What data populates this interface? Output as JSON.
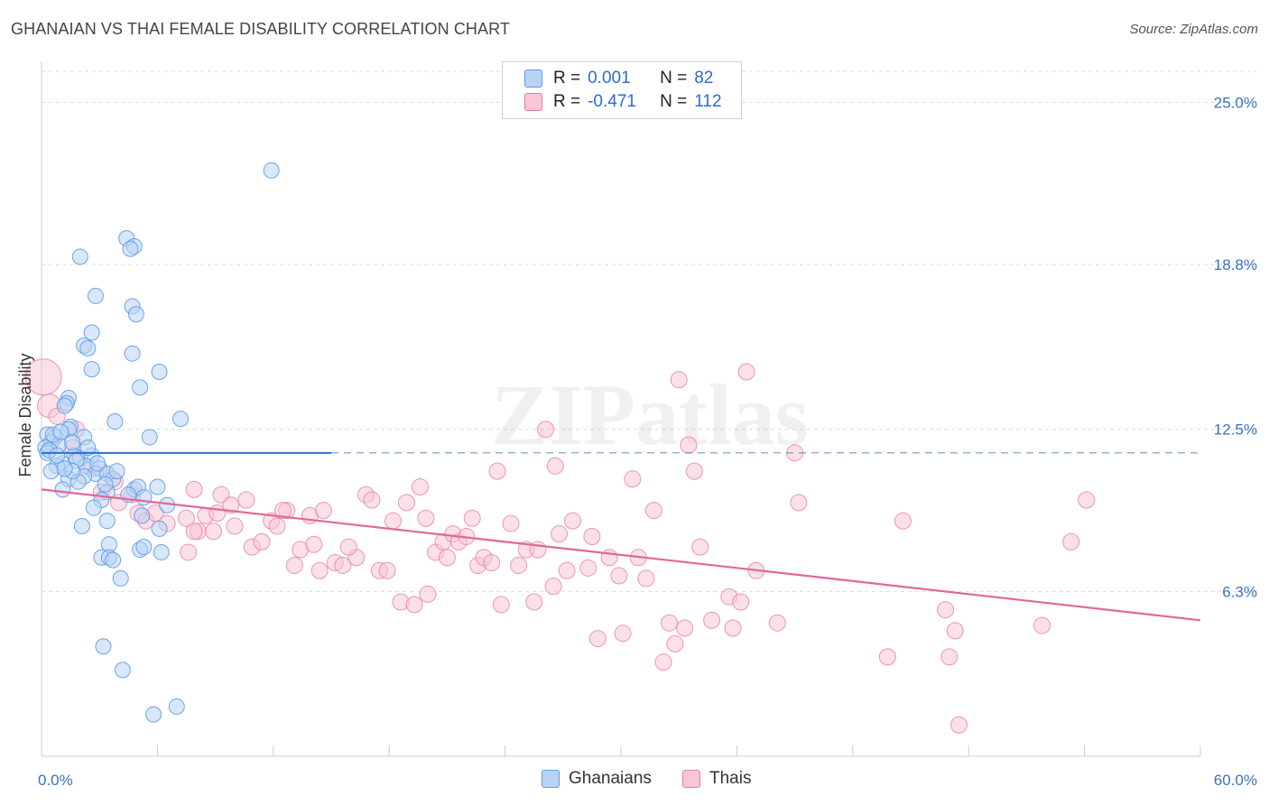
{
  "title": "GHANAIAN VS THAI FEMALE DISABILITY CORRELATION CHART",
  "source": "Source: ZipAtlas.com",
  "watermark": "ZIPatlas",
  "colors": {
    "blue": "#5b9be6",
    "blue_fill": "#b9d3f5",
    "blue_line": "#2a6fd4",
    "pink": "#e87da3",
    "pink_fill": "#f8c6d6",
    "pink_line": "#e0679a",
    "tick": "#3a72c4",
    "grid": "#dcdcdc"
  },
  "legend": {
    "rows": [
      {
        "series": "Ghanaians",
        "r_label": "R =",
        "r_value": "0.001",
        "n_label": "N =",
        "n_value": "82"
      },
      {
        "series": "Thais",
        "r_label": "R =",
        "r_value": "-0.471",
        "n_label": "N =",
        "n_value": "112"
      }
    ]
  },
  "bottom_legend": [
    "Ghanaians",
    "Thais"
  ],
  "chart_data": {
    "type": "scatter",
    "title": "GHANAIAN VS THAI FEMALE DISABILITY CORRELATION CHART",
    "xlabel": "",
    "ylabel": "Female Disability",
    "xlim": [
      0,
      60
    ],
    "ylim": [
      0,
      26.5
    ],
    "x_tick_labels": [
      "0.0%",
      "60.0%"
    ],
    "y_ticks": [
      6.3,
      12.5,
      18.8,
      25.0
    ],
    "y_tick_labels": [
      "6.3%",
      "12.5%",
      "18.8%",
      "25.0%"
    ],
    "grid": true,
    "legend_position": "top-center",
    "series": [
      {
        "name": "Ghanaians",
        "color": "#5b9be6",
        "trend": {
          "x": [
            0,
            15
          ],
          "y": [
            11.6,
            11.6
          ],
          "dashed_to": 60
        },
        "points": [
          [
            11.9,
            22.4
          ],
          [
            4.4,
            19.8
          ],
          [
            4.8,
            19.5
          ],
          [
            2.0,
            19.1
          ],
          [
            4.6,
            19.4
          ],
          [
            2.8,
            17.6
          ],
          [
            4.7,
            17.2
          ],
          [
            4.9,
            16.9
          ],
          [
            2.6,
            16.2
          ],
          [
            2.2,
            15.7
          ],
          [
            2.4,
            15.6
          ],
          [
            4.7,
            15.4
          ],
          [
            2.6,
            14.8
          ],
          [
            6.1,
            14.7
          ],
          [
            5.1,
            14.1
          ],
          [
            1.4,
            13.7
          ],
          [
            1.3,
            13.5
          ],
          [
            1.2,
            13.4
          ],
          [
            7.2,
            12.9
          ],
          [
            3.8,
            12.8
          ],
          [
            1.5,
            12.6
          ],
          [
            1.4,
            12.5
          ],
          [
            0.3,
            12.3
          ],
          [
            0.7,
            12.2
          ],
          [
            2.2,
            12.2
          ],
          [
            5.6,
            12.2
          ],
          [
            0.5,
            12.0
          ],
          [
            0.2,
            11.8
          ],
          [
            0.9,
            11.9
          ],
          [
            0.3,
            11.6
          ],
          [
            1.7,
            11.5
          ],
          [
            2.0,
            11.4
          ],
          [
            2.6,
            11.5
          ],
          [
            1.1,
            11.2
          ],
          [
            0.8,
            11.1
          ],
          [
            2.3,
            11.1
          ],
          [
            3.0,
            11.0
          ],
          [
            0.5,
            10.9
          ],
          [
            2.8,
            10.8
          ],
          [
            3.4,
            10.8
          ],
          [
            2.2,
            10.7
          ],
          [
            1.4,
            10.6
          ],
          [
            3.7,
            10.6
          ],
          [
            1.9,
            10.5
          ],
          [
            1.1,
            10.2
          ],
          [
            3.4,
            10.1
          ],
          [
            4.8,
            10.2
          ],
          [
            5.0,
            10.3
          ],
          [
            6.0,
            10.3
          ],
          [
            3.1,
            9.8
          ],
          [
            2.7,
            9.5
          ],
          [
            5.3,
            9.9
          ],
          [
            5.2,
            9.2
          ],
          [
            3.4,
            9.0
          ],
          [
            2.1,
            8.8
          ],
          [
            6.1,
            8.7
          ],
          [
            3.5,
            8.1
          ],
          [
            5.1,
            7.9
          ],
          [
            3.1,
            7.6
          ],
          [
            3.5,
            7.6
          ],
          [
            3.7,
            7.5
          ],
          [
            6.2,
            7.8
          ],
          [
            5.3,
            8.0
          ],
          [
            4.1,
            6.8
          ],
          [
            3.2,
            4.2
          ],
          [
            4.2,
            3.3
          ],
          [
            5.8,
            1.6
          ],
          [
            7.0,
            1.9
          ],
          [
            1.6,
            12.0
          ],
          [
            2.4,
            11.8
          ],
          [
            0.6,
            12.3
          ],
          [
            1.0,
            12.4
          ],
          [
            3.9,
            10.9
          ],
          [
            4.5,
            10.0
          ],
          [
            1.8,
            11.3
          ],
          [
            0.4,
            11.7
          ],
          [
            2.9,
            11.2
          ],
          [
            1.6,
            10.9
          ],
          [
            6.5,
            9.6
          ],
          [
            0.8,
            11.5
          ],
          [
            1.2,
            11.0
          ],
          [
            3.3,
            10.4
          ]
        ]
      },
      {
        "name": "Thais",
        "color": "#e87da3",
        "trend": {
          "x": [
            0,
            60
          ],
          "y": [
            10.2,
            5.2
          ]
        },
        "points": [
          [
            0.1,
            14.5
          ],
          [
            0.4,
            13.4
          ],
          [
            0.8,
            13.0
          ],
          [
            1.6,
            11.8
          ],
          [
            1.8,
            12.5
          ],
          [
            2.6,
            11.0
          ],
          [
            3.1,
            10.1
          ],
          [
            3.8,
            10.5
          ],
          [
            4.0,
            9.7
          ],
          [
            4.7,
            10.0
          ],
          [
            5.0,
            9.3
          ],
          [
            5.4,
            9.0
          ],
          [
            5.9,
            9.3
          ],
          [
            6.5,
            8.9
          ],
          [
            7.5,
            9.1
          ],
          [
            7.6,
            7.8
          ],
          [
            7.9,
            10.2
          ],
          [
            8.1,
            8.6
          ],
          [
            8.5,
            9.2
          ],
          [
            8.9,
            8.6
          ],
          [
            9.1,
            9.3
          ],
          [
            9.3,
            10.0
          ],
          [
            10.0,
            8.8
          ],
          [
            10.6,
            9.8
          ],
          [
            10.9,
            8.0
          ],
          [
            11.4,
            8.2
          ],
          [
            11.9,
            9.0
          ],
          [
            12.2,
            8.8
          ],
          [
            12.7,
            9.4
          ],
          [
            13.1,
            7.3
          ],
          [
            13.4,
            7.9
          ],
          [
            13.9,
            9.2
          ],
          [
            14.4,
            7.1
          ],
          [
            14.6,
            9.4
          ],
          [
            15.2,
            7.4
          ],
          [
            15.6,
            7.3
          ],
          [
            16.3,
            7.6
          ],
          [
            16.8,
            10.0
          ],
          [
            17.1,
            9.8
          ],
          [
            17.5,
            7.1
          ],
          [
            17.9,
            7.1
          ],
          [
            18.2,
            9.0
          ],
          [
            18.6,
            5.9
          ],
          [
            19.3,
            5.8
          ],
          [
            19.6,
            10.3
          ],
          [
            19.9,
            9.1
          ],
          [
            20.4,
            7.8
          ],
          [
            20.8,
            8.2
          ],
          [
            21.3,
            8.5
          ],
          [
            21.6,
            8.2
          ],
          [
            22.0,
            8.4
          ],
          [
            22.3,
            9.1
          ],
          [
            22.6,
            7.3
          ],
          [
            22.9,
            7.6
          ],
          [
            23.3,
            7.4
          ],
          [
            23.6,
            10.9
          ],
          [
            23.8,
            5.8
          ],
          [
            24.3,
            8.9
          ],
          [
            24.7,
            7.3
          ],
          [
            25.1,
            7.9
          ],
          [
            25.5,
            5.9
          ],
          [
            25.7,
            7.9
          ],
          [
            26.1,
            12.5
          ],
          [
            26.6,
            11.1
          ],
          [
            26.8,
            8.5
          ],
          [
            27.2,
            7.1
          ],
          [
            27.5,
            9.0
          ],
          [
            28.3,
            7.2
          ],
          [
            28.5,
            8.4
          ],
          [
            28.8,
            4.5
          ],
          [
            29.4,
            7.6
          ],
          [
            30.1,
            4.7
          ],
          [
            30.6,
            10.6
          ],
          [
            30.9,
            7.6
          ],
          [
            31.3,
            6.8
          ],
          [
            31.7,
            9.4
          ],
          [
            32.2,
            3.6
          ],
          [
            32.5,
            5.1
          ],
          [
            32.8,
            4.3
          ],
          [
            33.0,
            14.4
          ],
          [
            33.3,
            4.9
          ],
          [
            33.5,
            11.9
          ],
          [
            33.8,
            10.9
          ],
          [
            34.7,
            5.2
          ],
          [
            35.6,
            6.1
          ],
          [
            35.8,
            4.9
          ],
          [
            36.2,
            5.9
          ],
          [
            36.5,
            14.7
          ],
          [
            37.0,
            7.1
          ],
          [
            38.1,
            5.1
          ],
          [
            39.0,
            11.6
          ],
          [
            39.2,
            9.7
          ],
          [
            43.8,
            3.8
          ],
          [
            44.6,
            9.0
          ],
          [
            46.8,
            5.6
          ],
          [
            47.3,
            4.8
          ],
          [
            47.0,
            3.8
          ],
          [
            47.5,
            1.2
          ],
          [
            51.8,
            5.0
          ],
          [
            53.3,
            8.2
          ],
          [
            54.1,
            9.8
          ],
          [
            7.9,
            8.6
          ],
          [
            9.8,
            9.6
          ],
          [
            12.5,
            9.4
          ],
          [
            14.1,
            8.1
          ],
          [
            15.9,
            8.0
          ],
          [
            18.9,
            9.7
          ],
          [
            20.0,
            6.2
          ],
          [
            21.0,
            7.6
          ],
          [
            26.5,
            6.5
          ],
          [
            29.9,
            6.9
          ],
          [
            34.1,
            8.0
          ]
        ]
      }
    ]
  }
}
